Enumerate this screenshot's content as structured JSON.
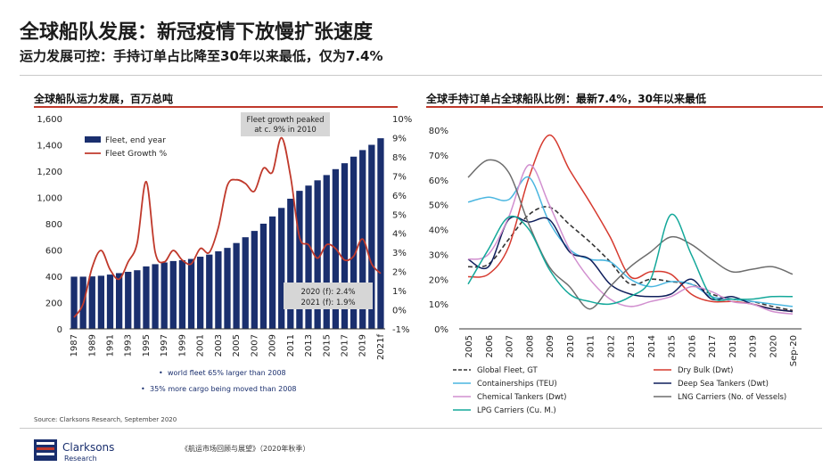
{
  "header": {
    "title": "全球船队发展：新冠疫情下放慢扩张速度",
    "subtitle": "运力发展可控：手持订单占比降至30年以来最低，仅为7.4%"
  },
  "source": "Source: Clarksons Research, September 2020",
  "footnote": "《航运市场回顾与展望》（2020年秋季）",
  "logo": {
    "name": "Clarksons",
    "sub": "Research"
  },
  "chart_data": [
    {
      "type": "bar+line",
      "title": "全球船队运力发展，百万总吨",
      "categories": [
        "1987",
        "1988",
        "1989",
        "1990",
        "1991",
        "1992",
        "1993",
        "1994",
        "1995",
        "1996",
        "1997",
        "1998",
        "1999",
        "2000",
        "2001",
        "2002",
        "2003",
        "2004",
        "2005",
        "2006",
        "2007",
        "2008",
        "2009",
        "2010",
        "2011",
        "2012",
        "2013",
        "2014",
        "2015",
        "2016",
        "2017",
        "2018",
        "2019",
        "2020(f)",
        "2021(f)"
      ],
      "x_tick_labels": [
        "1987",
        "1989",
        "1991",
        "1993",
        "1995",
        "1997",
        "1999",
        "2001",
        "2003",
        "2005",
        "2007",
        "2009",
        "2011",
        "2013",
        "2015",
        "2017",
        "2019",
        "2021f"
      ],
      "y_left": {
        "min": 0,
        "max": 1600,
        "ticks": [
          "0",
          "200",
          "400",
          "600",
          "800",
          "1,000",
          "1,200",
          "1,400",
          "1,600"
        ]
      },
      "y_right": {
        "min": -1,
        "max": 10,
        "ticks": [
          "-1%",
          "0%",
          "1%",
          "2%",
          "3%",
          "4%",
          "5%",
          "6%",
          "7%",
          "8%",
          "9%",
          "10%"
        ]
      },
      "series": [
        {
          "name": "Fleet, end year",
          "kind": "bar",
          "axis": "left",
          "color": "#1a2f6e",
          "values": [
            397,
            397,
            399,
            404,
            413,
            424,
            434,
            446,
            475,
            492,
            505,
            516,
            522,
            532,
            549,
            565,
            590,
            616,
            653,
            697,
            745,
            800,
            855,
            920,
            990,
            1050,
            1090,
            1130,
            1170,
            1215,
            1260,
            1310,
            1360,
            1400,
            1450
          ]
        },
        {
          "name": "Fleet Growth %",
          "kind": "line",
          "axis": "right",
          "color": "#c0392b",
          "values": [
            -0.4,
            0.3,
            2.2,
            3.1,
            2.1,
            1.6,
            2.5,
            3.5,
            6.7,
            3.0,
            2.5,
            3.1,
            2.6,
            2.4,
            3.2,
            3.0,
            4.3,
            6.5,
            6.8,
            6.6,
            6.2,
            7.4,
            7.2,
            9.0,
            7.0,
            3.8,
            3.4,
            2.7,
            3.4,
            3.2,
            2.6,
            2.8,
            3.7,
            2.4,
            1.9
          ]
        }
      ],
      "annotations": {
        "peak": [
          "Fleet growth peaked",
          "at c. 9% in 2010"
        ],
        "forecast": [
          "2020 (f): 2.4%",
          "2021 (f): 1.9%"
        ],
        "bullets": [
          "world fleet 65% larger than 2008",
          "35% more cargo being moved than 2008"
        ]
      },
      "legend_position": "top-left"
    },
    {
      "type": "line",
      "title": "全球手持订单占全球船队比例：最新7.4%，30年以来最低",
      "categories": [
        "2005",
        "2006",
        "2007",
        "2008",
        "2009",
        "2010",
        "2011",
        "2012",
        "2013",
        "2014",
        "2015",
        "2016",
        "2017",
        "2018",
        "2019",
        "2020",
        "Sep-20"
      ],
      "y": {
        "min": 0,
        "max": 80,
        "ticks": [
          "0%",
          "10%",
          "20%",
          "30%",
          "40%",
          "50%",
          "60%",
          "70%",
          "80%"
        ]
      },
      "series": [
        {
          "name": "Global Fleet, GT",
          "color": "#333333",
          "dashed": true,
          "values": [
            25,
            26,
            36,
            46,
            49,
            42,
            35,
            27,
            18,
            20,
            19,
            18,
            14,
            12,
            11,
            9,
            7.4
          ]
        },
        {
          "name": "Dry Bulk (Dwt)",
          "color": "#d63a2f",
          "values": [
            21,
            22,
            33,
            61,
            78,
            64,
            51,
            37,
            21,
            23,
            22,
            14,
            11,
            11,
            10,
            8,
            7
          ]
        },
        {
          "name": "Containerships (TEU)",
          "color": "#4ab6e0",
          "values": [
            51,
            53,
            52,
            61,
            43,
            32,
            28,
            27,
            20,
            17,
            19,
            18,
            13,
            12,
            11,
            10,
            9
          ]
        },
        {
          "name": "Deep Sea Tankers (Dwt)",
          "color": "#0f1f5c",
          "values": [
            28,
            25,
            44,
            43,
            44,
            31,
            28,
            18,
            14,
            13,
            14,
            20,
            12,
            13,
            10,
            8,
            7
          ]
        },
        {
          "name": "Chemical Tankers (Dwt)",
          "color": "#d18fcf",
          "values": [
            28,
            30,
            45,
            66,
            50,
            32,
            20,
            12,
            9,
            11,
            13,
            17,
            15,
            11,
            10,
            7,
            6
          ]
        },
        {
          "name": "LNG Carriers (No. of Vessels)",
          "color": "#6d6d6d",
          "values": [
            61,
            68,
            63,
            42,
            25,
            17,
            8,
            17,
            25,
            31,
            37,
            34,
            28,
            23,
            24,
            25,
            22
          ]
        },
        {
          "name": "LPG Carriers (Cu. M.)",
          "color": "#14a89a",
          "values": [
            18,
            32,
            45,
            40,
            24,
            14,
            11,
            10,
            13,
            20,
            46,
            30,
            13,
            12,
            12,
            13,
            13
          ]
        }
      ],
      "legend_position": "bottom"
    }
  ]
}
